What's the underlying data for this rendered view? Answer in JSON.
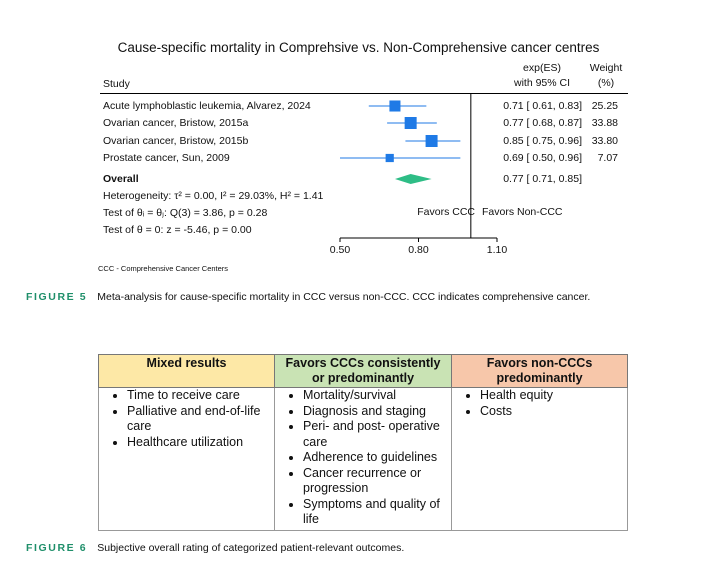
{
  "figure5": {
    "chart_data": {
      "type": "forest",
      "title": "Cause-specific mortality in Comprehsive vs. Non-Comprehensive cancer centres",
      "columns": {
        "study": "Study",
        "es_line1": "exp(ES)",
        "es_line2": "with 95% CI",
        "weight_line1": "Weight",
        "weight_line2": "(%)"
      },
      "studies": [
        {
          "label": "Acute lymphoblastic leukemia, Alvarez, 2024",
          "es": 0.71,
          "lo": 0.61,
          "hi": 0.83,
          "ci_text": "0.71 [ 0.61,  0.83]",
          "weight": 25.25,
          "weight_text": "25.25"
        },
        {
          "label": "Ovarian cancer, Bristow, 2015a",
          "es": 0.77,
          "lo": 0.68,
          "hi": 0.87,
          "ci_text": "0.77 [ 0.68,  0.87]",
          "weight": 33.88,
          "weight_text": "33.88"
        },
        {
          "label": "Ovarian cancer, Bristow, 2015b",
          "es": 0.85,
          "lo": 0.75,
          "hi": 0.96,
          "ci_text": "0.85 [ 0.75,  0.96]",
          "weight": 33.8,
          "weight_text": "33.80"
        },
        {
          "label": "Prostate cancer, Sun, 2009",
          "es": 0.69,
          "lo": 0.5,
          "hi": 0.96,
          "ci_text": "0.69 [ 0.50,  0.96]",
          "weight": 7.07,
          "weight_text": "7.07"
        }
      ],
      "overall": {
        "label": "Overall",
        "es": 0.77,
        "lo": 0.71,
        "hi": 0.85,
        "ci_text": "0.77 [ 0.71,  0.85]"
      },
      "stats": [
        "Heterogeneity: τ² = 0.00, I² = 29.03%, H² = 1.41",
        "Test of θᵢ = θⱼ: Q(3) = 3.86, p = 0.28",
        "Test of θ = 0: z = -5.46, p = 0.00"
      ],
      "favors_left": "Favors CCC",
      "favors_right": "Favors Non-CCC",
      "x_ticks": [
        0.5,
        0.8,
        1.1
      ],
      "x_tick_labels": [
        "0.50",
        "0.80",
        "1.10"
      ],
      "xlim": [
        0.45,
        1.15
      ],
      "reference_line": 1.0,
      "colors": {
        "marker": "#1f7ae6",
        "diamond": "#2ebd86",
        "line": "#1f7ae6"
      }
    },
    "footnote": "CCC - Comprehensive Cancer Centers",
    "caption_label": "FIGURE 5",
    "caption_text": "Meta-analysis for cause-specific mortality in CCC versus non-CCC. CCC indicates comprehensive cancer."
  },
  "figure6": {
    "columns": [
      {
        "header": "Mixed results",
        "color": "#fde8a6",
        "items": [
          "Time to receive care",
          "Palliative and end-of-life care",
          "Healthcare utilization"
        ]
      },
      {
        "header": "Favors CCCs consistently or predominantly",
        "color": "#c9e3b4",
        "items": [
          "Mortality/survival",
          "Diagnosis and staging",
          "Peri- and post- operative care",
          "Adherence to guidelines",
          "Cancer recurrence or progression",
          "Symptoms and quality of life"
        ]
      },
      {
        "header": "Favors non-CCCs predominantly",
        "color": "#f7c7aa",
        "items": [
          "Health equity",
          "Costs"
        ]
      }
    ],
    "caption_label": "FIGURE 6",
    "caption_text": "Subjective overall rating of categorized patient-relevant outcomes."
  }
}
